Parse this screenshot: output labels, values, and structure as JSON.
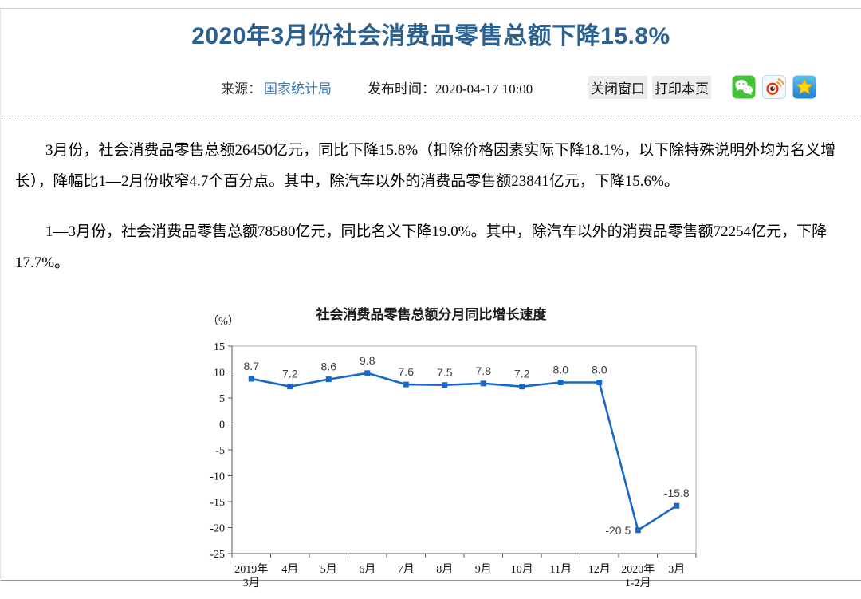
{
  "colors": {
    "title_blue": "#2A6191",
    "link_blue": "#3E79B4",
    "button_bg": "#ECECEC",
    "chart_line_blue": "#1868C8"
  },
  "page": {
    "title": "2020年3月份社会消费品零售总额下降15.8%"
  },
  "meta": {
    "source_label": "来源：",
    "source_link": "国家统计局",
    "publish_label": "发布时间：",
    "publish_time": "2020-04-17 10:00",
    "close_window": "关闭窗口",
    "print_page": "打印本页",
    "share_icons": [
      {
        "name": "wechat",
        "color": "#46C13A"
      },
      {
        "name": "weibo",
        "color": "#E8390C"
      },
      {
        "name": "qzone",
        "color": "#1C7FD6"
      }
    ]
  },
  "article": {
    "paragraphs": [
      "3月份，社会消费品零售总额26450亿元，同比下降15.8%（扣除价格因素实际下降18.1%，以下除特殊说明外均为名义增长），降幅比1—2月份收窄4.7个百分点。其中，除汽车以外的消费品零售额23841亿元，下降15.6%。",
      "1—3月份，社会消费品零售总额78580亿元，同比名义下降19.0%。其中，除汽车以外的消费品零售额72254亿元，下降17.7%。"
    ]
  },
  "chart_data": {
    "type": "line",
    "title": "社会消费品零售总额分月同比增长速度",
    "unit_label": "（%）",
    "categories": [
      [
        "2019年",
        "3月"
      ],
      [
        "4月"
      ],
      [
        "5月"
      ],
      [
        "6月"
      ],
      [
        "7月"
      ],
      [
        "8月"
      ],
      [
        "9月"
      ],
      [
        "10月"
      ],
      [
        "11月"
      ],
      [
        "12月"
      ],
      [
        "2020年",
        "1-2月"
      ],
      [
        "3月"
      ]
    ],
    "values": [
      8.7,
      7.2,
      8.6,
      9.8,
      7.6,
      7.5,
      7.8,
      7.2,
      8.0,
      8.0,
      -20.5,
      -15.8
    ],
    "ylim": [
      -25,
      15
    ],
    "ytick_step": 5,
    "grid": false,
    "legend": false,
    "line_color": "#1868C8",
    "marker": "square"
  }
}
